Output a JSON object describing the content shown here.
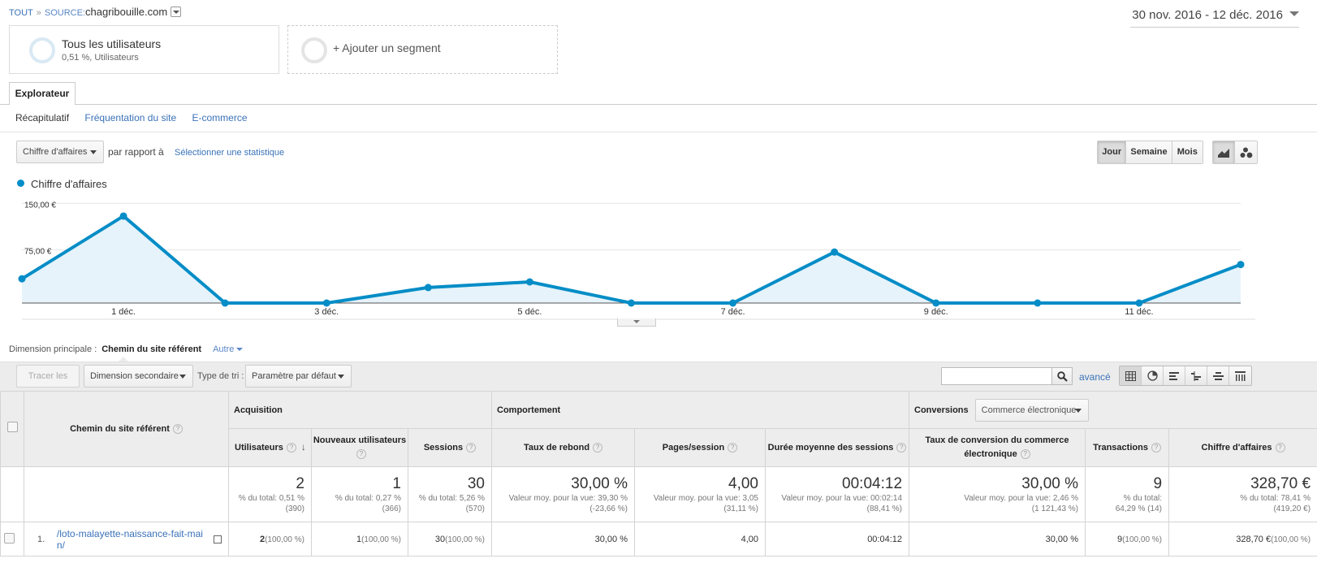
{
  "breadcrumb": {
    "all": "TOUT",
    "sep": "»",
    "source_label": "SOURCE:",
    "source_value": "chagribouille.com"
  },
  "date_range": "30 nov. 2016 - 12 déc. 2016",
  "segments": {
    "all_title": "Tous les utilisateurs",
    "all_sub": "0,51 %, Utilisateurs",
    "add": "+ Ajouter un segment"
  },
  "tabs": {
    "explorer": "Explorateur",
    "subtabs": [
      "Récapitulatif",
      "Fréquentation du site",
      "E-commerce"
    ]
  },
  "chart_controls": {
    "metric": "Chiffre d'affaires",
    "compare": "par rapport à",
    "select_stat": "Sélectionner une statistique",
    "periods": [
      "Jour",
      "Semaine",
      "Mois"
    ]
  },
  "chart_data": {
    "type": "area",
    "series": [
      {
        "name": "Chiffre d'affaires",
        "values": [
          39,
          140,
          0,
          0,
          25,
          34,
          0,
          0,
          82,
          0,
          0,
          0,
          62
        ]
      }
    ],
    "x": [
      "30 nov.",
      "1 déc.",
      "2 déc.",
      "3 déc.",
      "4 déc.",
      "5 déc.",
      "6 déc.",
      "7 déc.",
      "8 déc.",
      "9 déc.",
      "10 déc.",
      "11 déc.",
      "12 déc."
    ],
    "x_tick_labels": [
      "1 déc.",
      "3 déc.",
      "5 déc.",
      "7 déc.",
      "9 déc.",
      "11 déc."
    ],
    "x_tick_indices": [
      1,
      3,
      5,
      7,
      9,
      11
    ],
    "y_tick_labels": [
      "150,00 €",
      "75,00 €"
    ],
    "y_tick_values": [
      150,
      75
    ],
    "ylim": [
      0,
      170
    ],
    "grid": true,
    "color": "#058dc7",
    "fill": "#e6f3fa"
  },
  "dimension": {
    "label": "Dimension principale :",
    "primary": "Chemin du site référent",
    "other": "Autre"
  },
  "toolbar": {
    "plot_rows": "Tracer les lignes",
    "secondary_dim": "Dimension secondaire",
    "sort_label": "Type de tri :",
    "sort_value": "Paramètre par défaut",
    "advanced": "avancé",
    "search_value": ""
  },
  "table": {
    "groups": {
      "acquisition": "Acquisition",
      "behaviour": "Comportement",
      "conversions": "Conversions",
      "conv_select": "Commerce électronique"
    },
    "dimension_header": "Chemin du site référent",
    "columns": [
      {
        "label": "Utilisateurs",
        "sorted": true
      },
      {
        "label": "Nouveaux utilisateurs"
      },
      {
        "label": "Sessions"
      },
      {
        "label": "Taux de rebond"
      },
      {
        "label": "Pages/session"
      },
      {
        "label": "Durée moyenne des sessions"
      },
      {
        "label": "Taux de conversion du commerce électronique"
      },
      {
        "label": "Transactions"
      },
      {
        "label": "Chiffre d'affaires"
      }
    ],
    "totals": [
      {
        "big": "2",
        "l1": "% du total: 0,51 %",
        "l2": "(390)"
      },
      {
        "big": "1",
        "l1": "% du total: 0,27 %",
        "l2": "(366)"
      },
      {
        "big": "30",
        "l1": "% du total: 5,26 %",
        "l2": "(570)"
      },
      {
        "big": "30,00 %",
        "l1": "Valeur moy. pour la vue: 39,30 %",
        "l2": "(-23,66 %)"
      },
      {
        "big": "4,00",
        "l1": "Valeur moy. pour la vue: 3,05",
        "l2": "(31,11 %)"
      },
      {
        "big": "00:04:12",
        "l1": "Valeur moy. pour la vue: 00:02:14",
        "l2": "(88,41 %)"
      },
      {
        "big": "30,00 %",
        "l1": "Valeur moy. pour la vue: 2,46 %",
        "l2": "(1 121,43 %)"
      },
      {
        "big": "9",
        "l1": "% du total:",
        "l2": "64,29 % (14)"
      },
      {
        "big": "328,70 €",
        "l1": "% du total: 78,41 %",
        "l2": "(419,20 €)"
      }
    ],
    "rows": [
      {
        "index": "1.",
        "path": "/loto-malayette-naissance-fait-main/",
        "cells": [
          {
            "v": "2",
            "p": "(100,00 %)",
            "bold": true
          },
          {
            "v": "1",
            "p": "(100,00 %)"
          },
          {
            "v": "30",
            "p": "(100,00 %)"
          },
          {
            "v": "30,00 %"
          },
          {
            "v": "4,00"
          },
          {
            "v": "00:04:12"
          },
          {
            "v": "30,00 %"
          },
          {
            "v": "9",
            "p": "(100,00 %)"
          },
          {
            "v": "328,70 €",
            "p": "(100,00 %)"
          }
        ]
      }
    ]
  }
}
